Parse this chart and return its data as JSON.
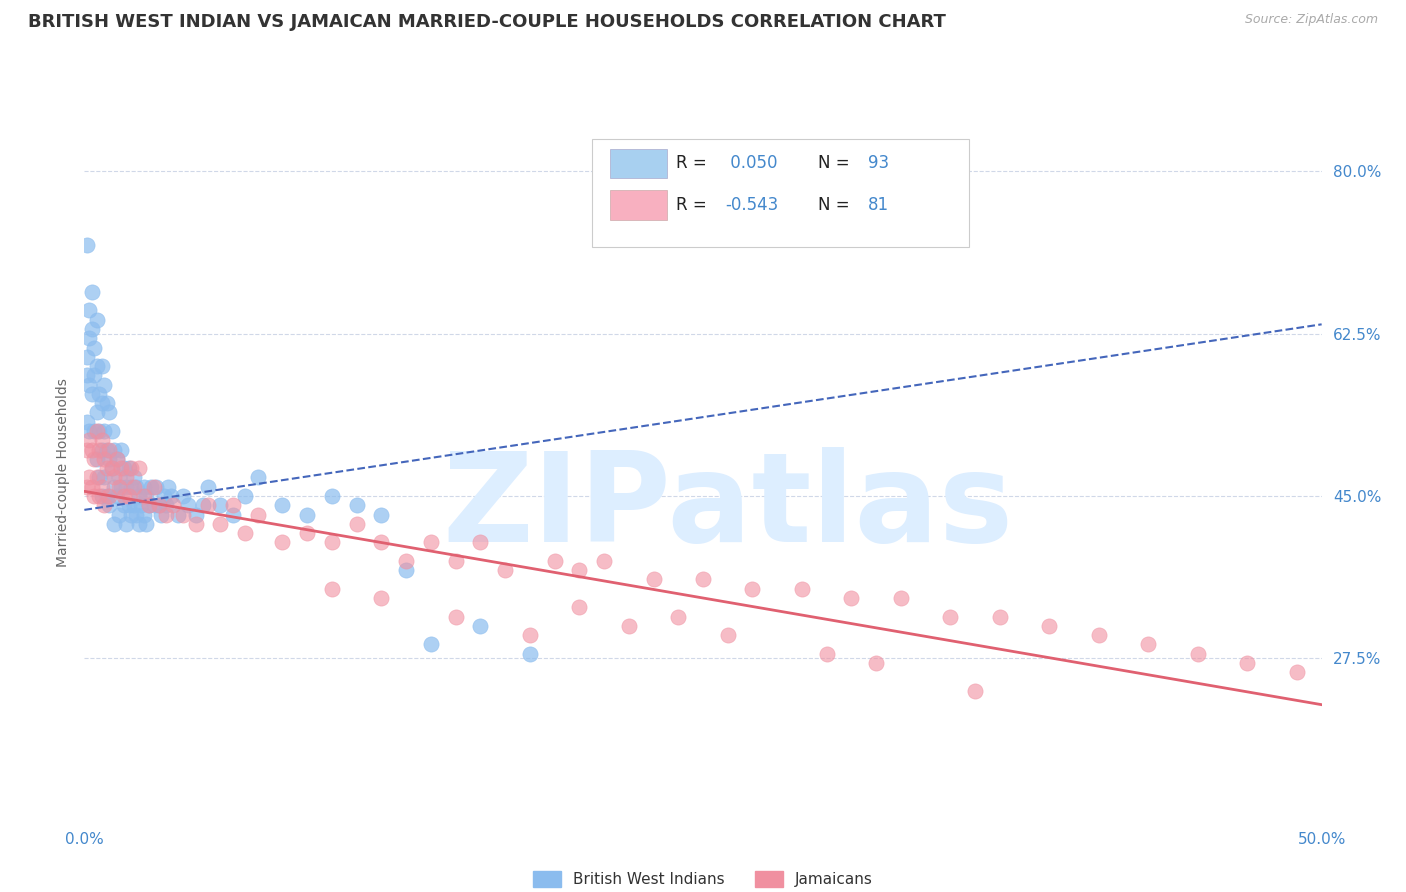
{
  "title": "BRITISH WEST INDIAN VS JAMAICAN MARRIED-COUPLE HOUSEHOLDS CORRELATION CHART",
  "source_text": "Source: ZipAtlas.com",
  "ylabel": "Married-couple Households",
  "xmin": 0.0,
  "xmax": 0.5,
  "ymin": 0.1,
  "ymax": 0.85,
  "yticks": [
    0.275,
    0.45,
    0.625,
    0.8
  ],
  "ytick_labels": [
    "27.5%",
    "45.0%",
    "62.5%",
    "80.0%"
  ],
  "xticks": [
    0.0,
    0.5
  ],
  "xtick_labels": [
    "0.0%",
    "50.0%"
  ],
  "bg_color": "#ffffff",
  "grid_color": "#d0d8e8",
  "axis_label_color": "#4488cc",
  "title_color": "#333333",
  "title_fontsize": 13,
  "ylabel_fontsize": 10,
  "tick_fontsize": 11,
  "watermark": "ZIPatlas",
  "watermark_color": "#ddeeff",
  "legend_box_color": "#a8d0f0",
  "legend_box_color2": "#f8b0c0",
  "bwi_scatter_color": "#8bbcee",
  "jam_scatter_color": "#f090a0",
  "bwi_trend_color": "#4466bb",
  "jam_trend_color": "#e06070",
  "bwi_trend_x": [
    0.0,
    0.5
  ],
  "bwi_trend_y": [
    0.435,
    0.635
  ],
  "jam_trend_x": [
    0.0,
    0.5
  ],
  "jam_trend_y": [
    0.455,
    0.225
  ],
  "bwi_x": [
    0.001,
    0.001,
    0.001,
    0.001,
    0.002,
    0.002,
    0.002,
    0.002,
    0.003,
    0.003,
    0.003,
    0.004,
    0.004,
    0.004,
    0.005,
    0.005,
    0.005,
    0.005,
    0.006,
    0.006,
    0.006,
    0.007,
    0.007,
    0.007,
    0.007,
    0.008,
    0.008,
    0.008,
    0.009,
    0.009,
    0.009,
    0.01,
    0.01,
    0.01,
    0.011,
    0.011,
    0.012,
    0.012,
    0.012,
    0.013,
    0.013,
    0.014,
    0.014,
    0.015,
    0.015,
    0.016,
    0.016,
    0.017,
    0.017,
    0.018,
    0.018,
    0.019,
    0.019,
    0.02,
    0.02,
    0.021,
    0.021,
    0.022,
    0.022,
    0.023,
    0.024,
    0.024,
    0.025,
    0.025,
    0.026,
    0.027,
    0.028,
    0.029,
    0.03,
    0.031,
    0.032,
    0.033,
    0.034,
    0.035,
    0.038,
    0.04,
    0.042,
    0.045,
    0.048,
    0.05,
    0.055,
    0.06,
    0.065,
    0.07,
    0.08,
    0.09,
    0.1,
    0.11,
    0.12,
    0.13,
    0.14,
    0.16,
    0.18
  ],
  "bwi_y": [
    0.72,
    0.6,
    0.58,
    0.53,
    0.65,
    0.62,
    0.57,
    0.52,
    0.67,
    0.63,
    0.56,
    0.61,
    0.58,
    0.52,
    0.64,
    0.59,
    0.54,
    0.49,
    0.56,
    0.52,
    0.47,
    0.59,
    0.55,
    0.5,
    0.45,
    0.57,
    0.52,
    0.47,
    0.55,
    0.5,
    0.45,
    0.54,
    0.49,
    0.44,
    0.52,
    0.48,
    0.5,
    0.46,
    0.42,
    0.49,
    0.45,
    0.47,
    0.43,
    0.5,
    0.46,
    0.48,
    0.44,
    0.46,
    0.42,
    0.48,
    0.44,
    0.46,
    0.43,
    0.47,
    0.44,
    0.46,
    0.43,
    0.45,
    0.42,
    0.44,
    0.46,
    0.43,
    0.45,
    0.42,
    0.44,
    0.46,
    0.44,
    0.46,
    0.44,
    0.43,
    0.45,
    0.44,
    0.46,
    0.45,
    0.43,
    0.45,
    0.44,
    0.43,
    0.44,
    0.46,
    0.44,
    0.43,
    0.45,
    0.47,
    0.44,
    0.43,
    0.45,
    0.44,
    0.43,
    0.37,
    0.29,
    0.31,
    0.28
  ],
  "jam_x": [
    0.001,
    0.001,
    0.002,
    0.002,
    0.003,
    0.003,
    0.004,
    0.004,
    0.005,
    0.005,
    0.006,
    0.006,
    0.007,
    0.007,
    0.008,
    0.008,
    0.009,
    0.01,
    0.01,
    0.011,
    0.012,
    0.013,
    0.014,
    0.015,
    0.016,
    0.017,
    0.018,
    0.019,
    0.02,
    0.022,
    0.024,
    0.026,
    0.028,
    0.03,
    0.033,
    0.036,
    0.04,
    0.045,
    0.05,
    0.055,
    0.06,
    0.065,
    0.07,
    0.08,
    0.09,
    0.1,
    0.11,
    0.12,
    0.13,
    0.14,
    0.15,
    0.16,
    0.17,
    0.19,
    0.2,
    0.21,
    0.23,
    0.25,
    0.27,
    0.29,
    0.31,
    0.33,
    0.35,
    0.37,
    0.39,
    0.41,
    0.43,
    0.45,
    0.47,
    0.49,
    0.1,
    0.12,
    0.15,
    0.18,
    0.2,
    0.22,
    0.24,
    0.26,
    0.3,
    0.32,
    0.36
  ],
  "jam_y": [
    0.5,
    0.46,
    0.51,
    0.47,
    0.5,
    0.46,
    0.49,
    0.45,
    0.52,
    0.47,
    0.5,
    0.45,
    0.51,
    0.46,
    0.49,
    0.44,
    0.48,
    0.5,
    0.45,
    0.48,
    0.47,
    0.49,
    0.46,
    0.48,
    0.45,
    0.47,
    0.45,
    0.48,
    0.46,
    0.48,
    0.45,
    0.44,
    0.46,
    0.44,
    0.43,
    0.44,
    0.43,
    0.42,
    0.44,
    0.42,
    0.44,
    0.41,
    0.43,
    0.4,
    0.41,
    0.4,
    0.42,
    0.4,
    0.38,
    0.4,
    0.38,
    0.4,
    0.37,
    0.38,
    0.37,
    0.38,
    0.36,
    0.36,
    0.35,
    0.35,
    0.34,
    0.34,
    0.32,
    0.32,
    0.31,
    0.3,
    0.29,
    0.28,
    0.27,
    0.26,
    0.35,
    0.34,
    0.32,
    0.3,
    0.33,
    0.31,
    0.32,
    0.3,
    0.28,
    0.27,
    0.24
  ]
}
